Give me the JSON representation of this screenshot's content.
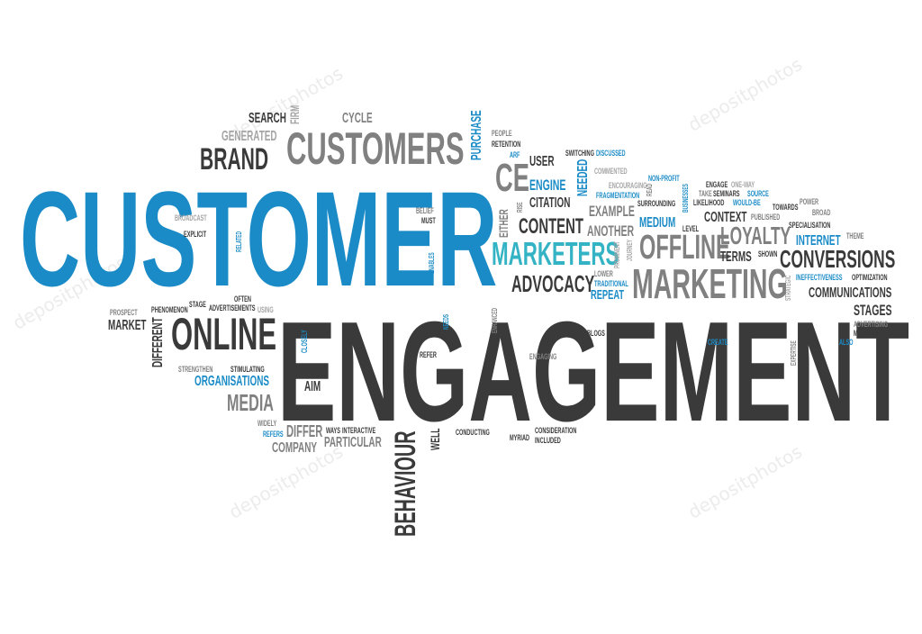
{
  "words": {
    "customer": "CUSTOMER",
    "engagement": "ENGAGEMENT",
    "customers": "CUSTOMERS",
    "brand": "BRAND",
    "search": "SEARCH",
    "generated": "GENERATED",
    "firm": "FIRM",
    "cycle": "CYCLE",
    "purchase": "PURCHASE",
    "people": "PEOPLE",
    "retention": "RETENTION",
    "arf": "ARF",
    "ce": "CE",
    "user": "USER",
    "switching": "SWITCHING",
    "discussed": "DISCUSSED",
    "commented": "COMMENTED",
    "encouraging": "ENCOURAGING",
    "fragmentation": "FRAGMENTATION",
    "engine": "ENGINE",
    "needed": "NEEDED",
    "non_profit": "NON-PROFIT",
    "read": "READ",
    "surrounding": "SURROUNDING",
    "engage": "ENGAGE",
    "one_way": "ONE-WAY",
    "take": "TAKE",
    "seminars": "SEMINARS",
    "source": "SOURCE",
    "likelihood": "LIKELIHOOD",
    "would_be": "WOULD-BE",
    "towards": "TOWARDS",
    "power": "POWER",
    "broad": "BROAD",
    "citation": "CITATION",
    "rise": "RISE",
    "either": "EITHER",
    "example": "EXAMPLE",
    "businesses": "BUSINESSES",
    "context": "CONTEXT",
    "published": "PUBLISHED",
    "specialisation": "SPECIALISATION",
    "content": "CONTENT",
    "medium": "MEDIUM",
    "another": "ANOTHER",
    "level": "LEVEL",
    "loyalty": "LOYALTY",
    "internet": "INTERNET",
    "theme": "THEME",
    "marketers": "MARKETERS",
    "offline": "OFFLINE",
    "prominent": "PROMINENT",
    "journey": "JOURNEY",
    "terms": "TERMS",
    "shown": "SHOWN",
    "conversions": "CONVERSIONS",
    "lower": "LOWER",
    "traditional": "TRADITIONAL",
    "strategic": "STRATEGIC",
    "ineffectiveness": "INEFFECTIVENESS",
    "optimization": "OPTIMIZATION",
    "advocacy": "ADVOCACY",
    "repeat": "REPEAT",
    "marketing": "MARKETING",
    "communications": "COMMUNICATIONS",
    "stages": "STAGES",
    "advertising": "ADVERTISING",
    "maximising": "MAXIMISING",
    "create": "CREATE",
    "also": "ALSO",
    "expertise": "EXPERTISE",
    "broadcast": "BROADCAST",
    "belief": "BELIEF",
    "must": "MUST",
    "explicit": "EXPLICIT",
    "related": "RELATED",
    "enables": "ENABLES",
    "often": "OFTEN",
    "advertisements": "ADVERTISEMENTS",
    "stage": "STAGE",
    "phenomenon": "PHENOMENON",
    "prospect": "PROSPECT",
    "market": "MARKET",
    "using": "USING",
    "different": "DIFFERENT",
    "online": "ONLINE",
    "needs": "NEEDS",
    "enhanced": "ENHANCED",
    "closely": "CLOSELY",
    "refer": "REFER",
    "blogs": "BLOGS",
    "engaging": "ENGAGING",
    "strengthen": "STRENGTHEN",
    "stimulating": "STIMULATING",
    "organisations": "ORGANISATIONS",
    "aim": "AIM",
    "media": "MEDIA",
    "widely": "WIDELY",
    "refers": "REFERS",
    "differ": "DIFFER",
    "ways": "WAYS",
    "interactive": "INTERACTIVE",
    "particular": "PARTICULAR",
    "company": "COMPANY",
    "behaviour": "BEHAVIOUR",
    "well": "WELL",
    "conducting": "CONDUCTING",
    "myriad": "MYRIAD",
    "consideration": "CONSIDERATION",
    "included": "INCLUDED"
  },
  "watermark": "depositphotos",
  "colors": {
    "blue": "#1a8bc6",
    "teal": "#33b3c4",
    "dark": "#3a3a3a",
    "grey": "#808080"
  }
}
